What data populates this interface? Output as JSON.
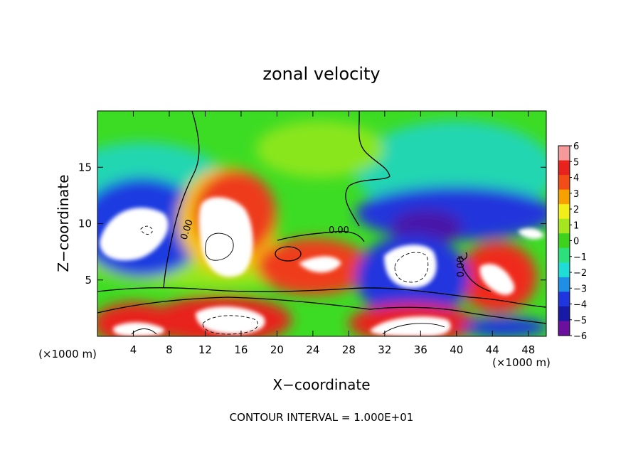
{
  "chart_data": {
    "type": "heatmap",
    "title": "zonal velocity",
    "xlabel": "X−coordinate",
    "ylabel": "Z−coordinate",
    "x_unit_label": "(×1000 m)",
    "y_unit_label": "(×1000 m)",
    "xlim": [
      0,
      50
    ],
    "ylim": [
      0,
      20
    ],
    "x_ticks": [
      4,
      8,
      12,
      16,
      20,
      24,
      28,
      32,
      36,
      40,
      44,
      48
    ],
    "y_ticks": [
      5,
      10,
      15
    ],
    "footer": "CONTOUR INTERVAL = 1.000E+01",
    "contour_labels": [
      "0.00",
      "0.00",
      "0.00"
    ],
    "colorbar": {
      "levels": [
        6,
        5,
        4,
        3,
        2,
        1,
        0,
        -1,
        -2,
        -3,
        -4,
        -5,
        -6
      ],
      "labels": [
        "6",
        "5",
        "4",
        "3",
        "2",
        "1",
        "0",
        "−1",
        "−2",
        "−3",
        "−4",
        "−5",
        "−6"
      ],
      "colors": [
        "#f49a9a",
        "#e8231e",
        "#f24d17",
        "#f6a100",
        "#f2ee1a",
        "#a6e61e",
        "#3cd21e",
        "#2ce07c",
        "#1fdcd6",
        "#1f8fe6",
        "#1f35df",
        "#1919a8",
        "#6b0f9e"
      ]
    },
    "features": [
      {
        "kind": "positive",
        "x": 15,
        "z": 9,
        "peak": 6
      },
      {
        "kind": "positive",
        "x": 25,
        "z": 6,
        "peak": 5
      },
      {
        "kind": "positive",
        "x": 44,
        "z": 5,
        "peak": 5
      },
      {
        "kind": "positive",
        "x": 17,
        "z": 1.5,
        "peak": 6
      },
      {
        "kind": "positive",
        "x": 36,
        "z": 2,
        "peak": 6
      },
      {
        "kind": "positive",
        "x": 4,
        "z": 1.5,
        "peak": 6
      },
      {
        "kind": "negative",
        "x": 6,
        "z": 10,
        "peak": -6
      },
      {
        "kind": "negative",
        "x": 37,
        "z": 8,
        "peak": -6
      },
      {
        "kind": "negative",
        "x": 46,
        "z": 9,
        "peak": -5
      }
    ]
  }
}
